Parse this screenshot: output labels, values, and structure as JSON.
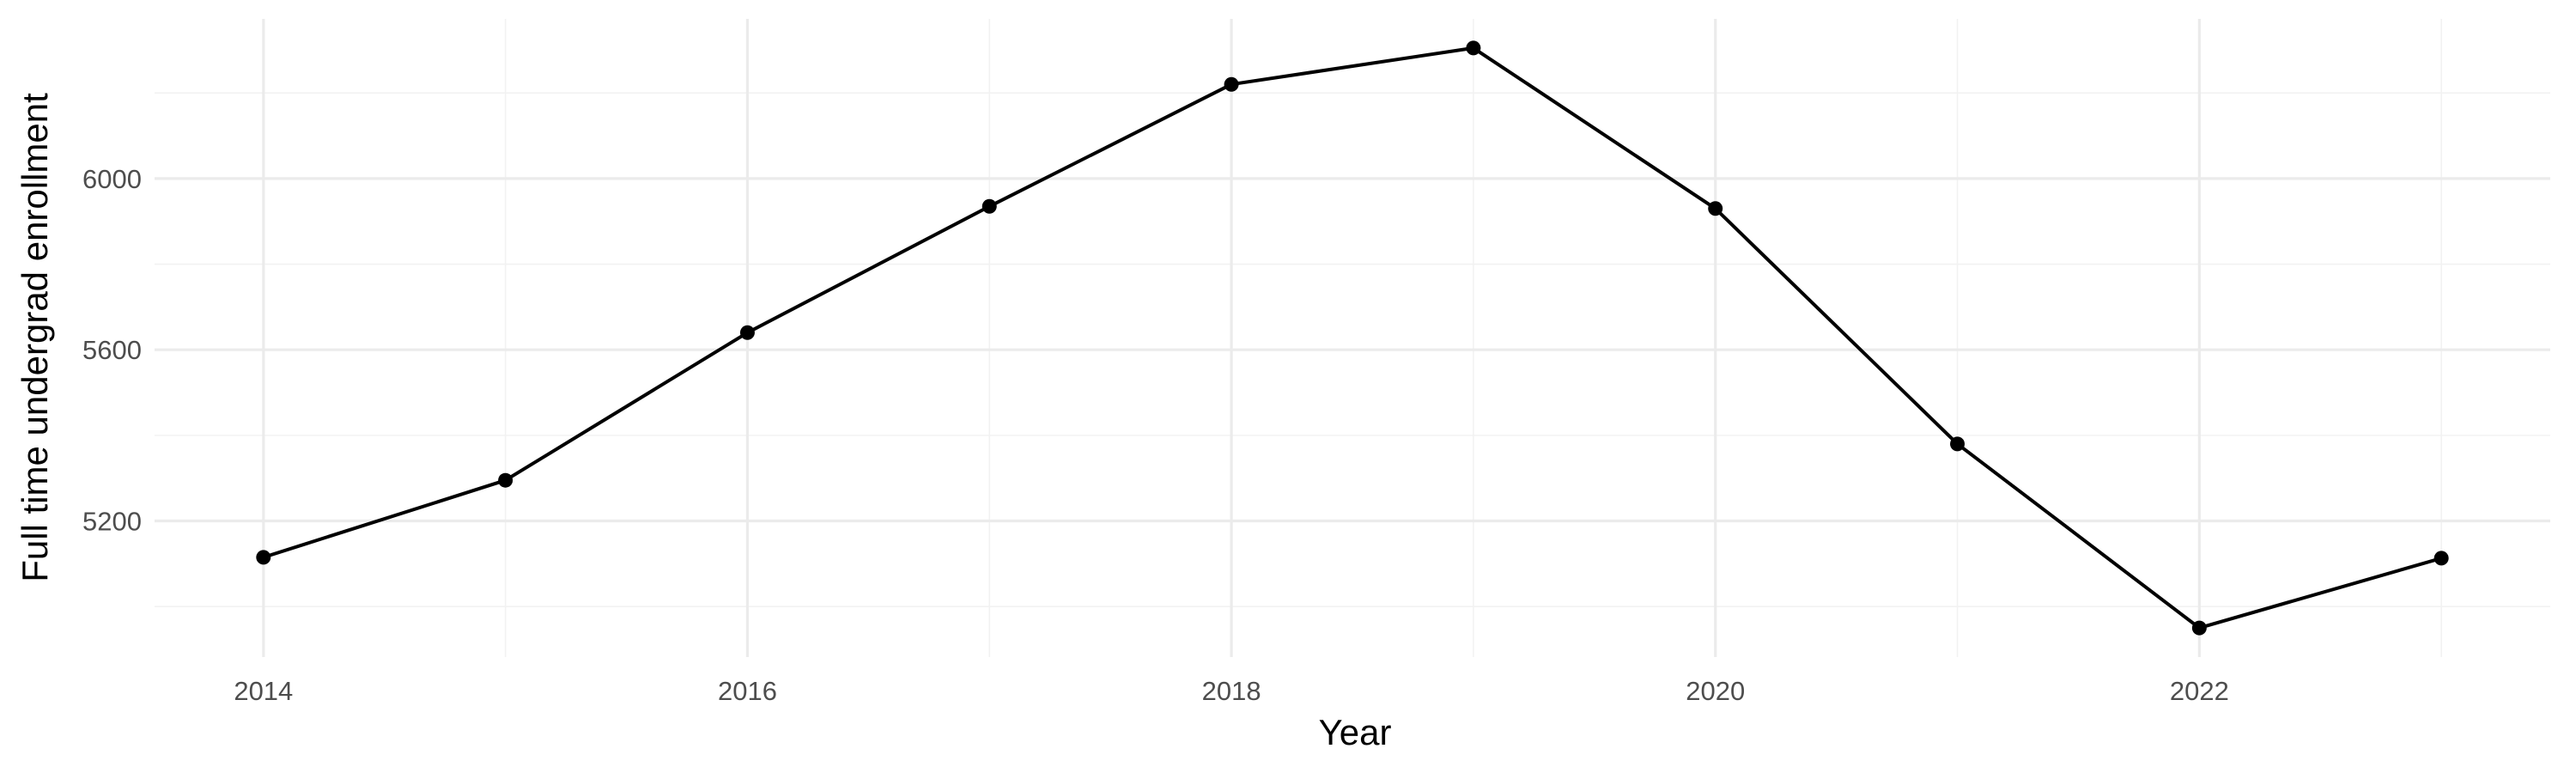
{
  "chart_data": {
    "type": "line",
    "title": "",
    "xlabel": "Year",
    "ylabel": "Full time undergrad enrollment",
    "x": [
      2014,
      2015,
      2016,
      2017,
      2018,
      2019,
      2020,
      2021,
      2022,
      2023
    ],
    "series": [
      {
        "values": [
          5115,
          5295,
          5640,
          5935,
          6220,
          6305,
          5930,
          5380,
          4950,
          5113
        ],
        "color": "#000000"
      }
    ],
    "x_ticks": [
      "2014",
      "2016",
      "2018",
      "2020",
      "2022"
    ],
    "y_ticks": [
      "5200",
      "5600",
      "6000"
    ],
    "xlim": [
      2013.55,
      2023.45
    ],
    "ylim": [
      4882,
      6373
    ],
    "grid": true,
    "legend": "none",
    "colors": {
      "grid_major": "#ebebeb",
      "grid_minor": "#f2f2f2",
      "tick_text": "#4d4d4d"
    }
  }
}
